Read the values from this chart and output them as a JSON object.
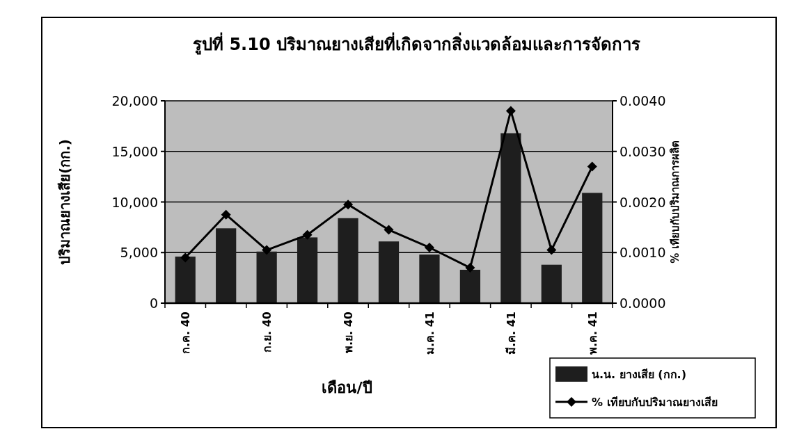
{
  "chart_data": {
    "type": "bar",
    "title": "รูปที่ 5.10 ปริมาณยางเสียที่เกิดจากสิ่งแวดล้อมและการจัดการ",
    "xlabel": "เดือน/ปี",
    "ylabel": "ปริมาณยางเสีย(กก.)",
    "y2label": "% เทียบกับปริมาณการผลิต",
    "categories": [
      "ก.ค. 40",
      null,
      "ก.ย. 40",
      null,
      "พ.ย. 40",
      null,
      "ม.ค. 41",
      null,
      "มี.ค. 41",
      null,
      "พ.ค. 41"
    ],
    "series": [
      {
        "name": "น.น. ยางเสีย (กก.)",
        "color": "#1e1e1e",
        "values": [
          4600,
          7400,
          5100,
          6500,
          8400,
          6100,
          4800,
          3300,
          16800,
          3800,
          10900
        ]
      },
      {
        "name": "% เทียบกับปริมาณยางเสีย",
        "type": "line",
        "axis": "y2",
        "color": "#000000",
        "marker": "diamond",
        "values": [
          0.0009,
          0.00175,
          0.00105,
          0.00135,
          0.00195,
          0.00145,
          0.0011,
          0.0007,
          0.0038,
          0.00105,
          0.0027
        ]
      }
    ],
    "ylim": [
      0,
      20000
    ],
    "yticks": [
      0,
      {
        "value": 5000,
        "label": "5,000"
      },
      {
        "value": 10000,
        "label": "10,000"
      },
      {
        "value": 15000,
        "label": "15,000"
      },
      {
        "value": 20000,
        "label": "20,000"
      }
    ],
    "y2lim": [
      0,
      0.004
    ],
    "y2ticks": [
      {
        "value": 0,
        "label": "0.0000"
      },
      {
        "value": 0.001,
        "label": "0.0010"
      },
      {
        "value": 0.002,
        "label": "0.0020"
      },
      {
        "value": 0.003,
        "label": "0.0030"
      },
      {
        "value": 0.004,
        "label": "0.0040"
      }
    ],
    "grid": "y",
    "legend": "bottom right"
  }
}
